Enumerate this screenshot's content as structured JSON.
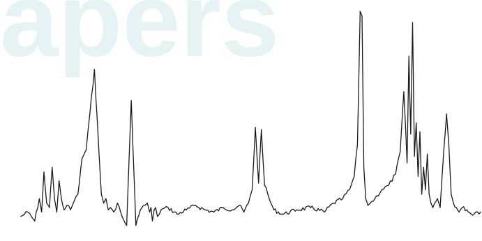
{
  "watermark": {
    "text": "Papers"
  },
  "chart_data": {
    "type": "line",
    "title": "",
    "xlabel": "",
    "ylabel": "",
    "axes_visible": false,
    "grid": false,
    "legend": "none",
    "colors": {
      "trace": "#1a1a1a",
      "watermark": "#e6f3f5",
      "background": "#ffffff"
    },
    "xlim": [
      0,
      100
    ],
    "ylim": [
      0,
      100
    ],
    "series": [
      {
        "x": [
          0,
          1.5,
          3,
          4,
          4.5,
          5,
          5.6,
          6.2,
          6.8,
          7.3,
          7.8,
          8.3,
          8.8,
          9.4,
          10,
          10.8,
          11.6,
          12.4,
          13.3,
          14.2,
          15,
          16,
          17,
          17.5,
          18,
          18.5,
          19,
          19.5,
          20.2,
          21,
          22,
          23,
          24,
          25,
          26,
          27,
          27.5,
          28,
          28.3,
          28.6,
          29,
          29.3,
          29.7,
          30.5,
          32,
          34,
          36,
          38,
          40,
          42,
          44,
          46,
          47.5,
          48.5,
          49.5,
          50.3,
          51,
          51.7,
          52.3,
          53,
          54,
          55,
          57,
          60,
          63,
          66,
          68,
          70,
          71.5,
          72.5,
          73.2,
          73.8,
          74.2,
          74.6,
          75,
          75.5,
          76,
          77,
          78.5,
          80,
          81.5,
          82.5,
          83.3,
          84,
          84.4,
          84.8,
          85.2,
          85.6,
          86,
          86.4,
          86.8,
          87.2,
          87.6,
          88,
          88.4,
          88.8,
          89.2,
          89.6,
          90,
          90.6,
          91.2,
          92,
          92.6,
          93.1,
          93.6,
          94.1,
          94.7,
          95.3,
          96,
          97,
          98,
          99,
          100
        ],
        "y": [
          6,
          8,
          4,
          14,
          8,
          26,
          12,
          10,
          28,
          14,
          8,
          22,
          14,
          9,
          11,
          9,
          13,
          16,
          32,
          36,
          52,
          72,
          34,
          16,
          12,
          14,
          9,
          10,
          8,
          12,
          6,
          2,
          58,
          2,
          9,
          11,
          12,
          8,
          10,
          4,
          9,
          10,
          6,
          9,
          10,
          7,
          9,
          11,
          9,
          8,
          10,
          9,
          11,
          8,
          12,
          18,
          46,
          21,
          45,
          20,
          14,
          9,
          7,
          9,
          10,
          8,
          12,
          14,
          18,
          24,
          38,
          98,
          96,
          28,
          14,
          11,
          12,
          14,
          18,
          20,
          25,
          35,
          62,
          30,
          78,
          43,
          93,
          33,
          48,
          24,
          44,
          16,
          28,
          18,
          34,
          16,
          12,
          10,
          12,
          14,
          10,
          36,
          52,
          38,
          16,
          12,
          10,
          8,
          10,
          9,
          7,
          8,
          8
        ]
      }
    ]
  }
}
